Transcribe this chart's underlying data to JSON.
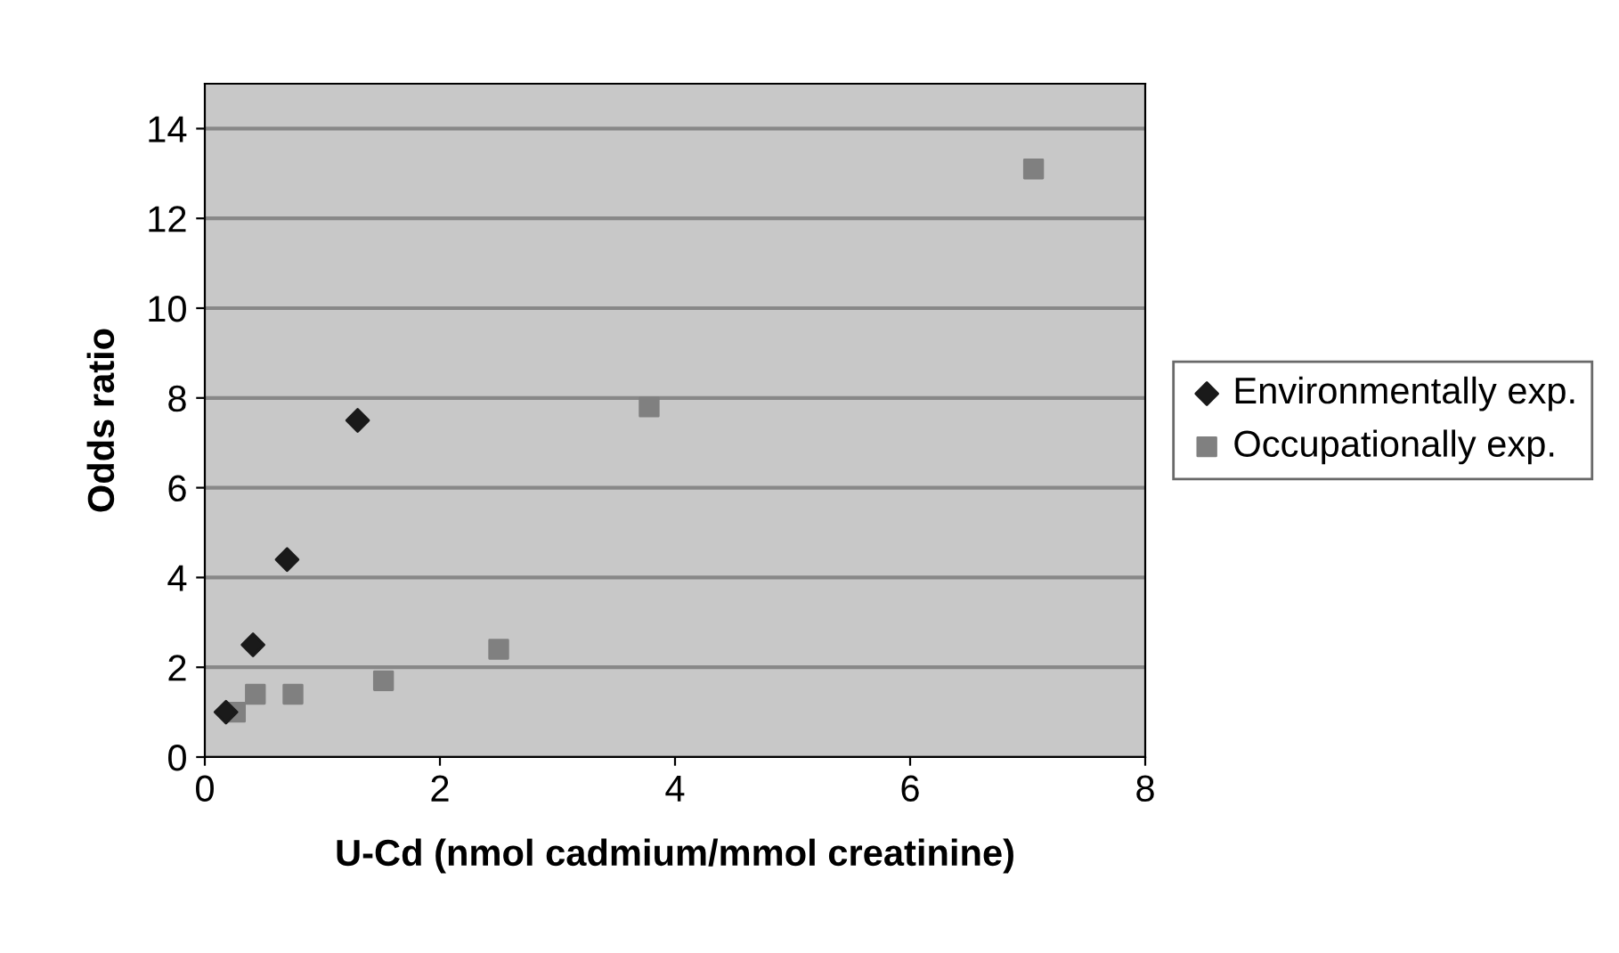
{
  "chart_data": {
    "type": "scatter",
    "xlabel": "U-Cd (nmol cadmium/mmol creatinine)",
    "ylabel": "Odds ratio",
    "series": [
      {
        "name": "Environmentally exp.",
        "color": "#1a1a1a",
        "marker": "diamond",
        "x": [
          0.18,
          0.41,
          0.7,
          1.3
        ],
        "values": [
          1.0,
          2.5,
          4.4,
          7.5
        ]
      },
      {
        "name": "Occupationally exp.",
        "color": "#808080",
        "marker": "square",
        "x": [
          0.26,
          0.43,
          0.75,
          1.52,
          2.5,
          3.78,
          7.05
        ],
        "values": [
          1.0,
          1.4,
          1.4,
          1.7,
          2.4,
          7.8,
          13.1
        ]
      }
    ],
    "xlim": [
      0,
      8
    ],
    "xticks": [
      0,
      2,
      4,
      6,
      8
    ],
    "ylim": [
      0,
      15
    ],
    "yticks": [
      0,
      2,
      4,
      6,
      8,
      10,
      12,
      14
    ],
    "grid": "y",
    "legend": "right"
  }
}
